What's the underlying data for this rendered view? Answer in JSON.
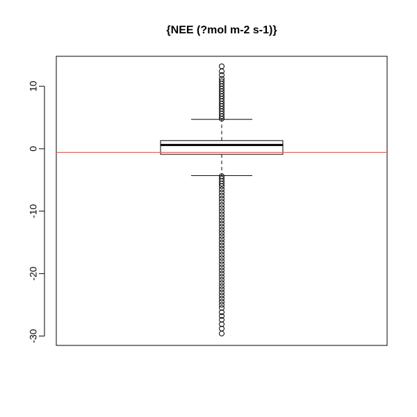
{
  "chart_data": {
    "type": "boxplot",
    "title": "{NEE (?mol m-2 s-1)}",
    "xlabel": "",
    "ylabel": "",
    "ylim": [
      -31.5,
      14.8
    ],
    "y_ticks": [
      10,
      0,
      -10,
      -20,
      -30
    ],
    "y_tick_labels": [
      "10",
      "0",
      "-10",
      "-20",
      "-30"
    ],
    "box": {
      "min_whisker": -4.3,
      "q1": -0.9,
      "median": 0.6,
      "q3": 1.3,
      "max_whisker": 4.7
    },
    "outliers": {
      "upper_sample": [
        4.8,
        5.2,
        5.6,
        6.0,
        6.4,
        6.8,
        7.2,
        7.6,
        8.0,
        8.4,
        8.8,
        9.2,
        9.6,
        10.0,
        10.4,
        10.8,
        11.2,
        11.8,
        12.4,
        13.2
      ],
      "lower_sample": [
        -4.4,
        -4.8,
        -5.2,
        -5.6,
        -6.0,
        -6.5,
        -7.0,
        -7.5,
        -8.0,
        -8.5,
        -9.0,
        -9.5,
        -10.0,
        -10.5,
        -11.0,
        -11.5,
        -12.0,
        -12.5,
        -13.0,
        -13.5,
        -14.0,
        -14.5,
        -15.0,
        -15.5,
        -16.0,
        -16.5,
        -17.0,
        -17.5,
        -18.0,
        -18.5,
        -19.0,
        -19.5,
        -20.0,
        -20.5,
        -21.0,
        -21.5,
        -22.0,
        -22.5,
        -23.0,
        -23.5,
        -24.0,
        -24.5,
        -25.0,
        -25.5,
        -26.2,
        -26.8,
        -27.4,
        -28.1,
        -28.8,
        -29.6
      ]
    },
    "reference_line": {
      "y": -0.6,
      "color": "#e06666"
    },
    "colors": {
      "axis": "#000000",
      "box": "#000000",
      "points": "#000000"
    },
    "grid": false
  }
}
